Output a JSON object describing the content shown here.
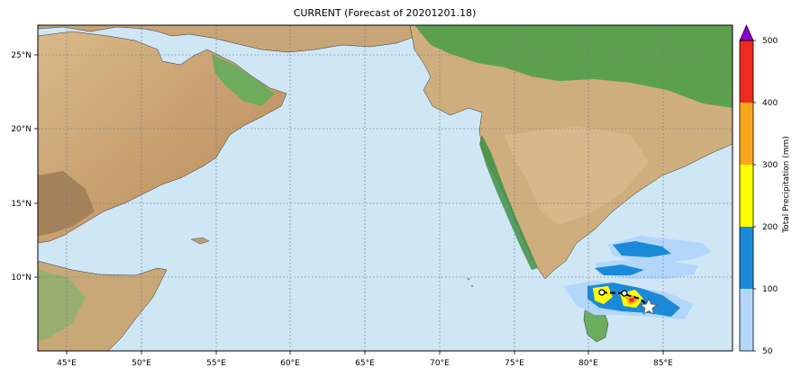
{
  "title": "CURRENT (Forecast of 20201201.18)",
  "map": {
    "lat_ticks": [
      "25°N",
      "20°N",
      "15°N",
      "10°N"
    ],
    "lon_ticks": [
      "45°E",
      "50°E",
      "55°E",
      "60°E",
      "65°E",
      "70°E",
      "75°E",
      "80°E",
      "85°E"
    ],
    "ocean_color": "#cfe6f5",
    "grid": true,
    "grid_style": "dashed",
    "marker_icon": "white-star-icon",
    "storm_track": true
  },
  "colorbar": {
    "label": "Total Precipitation (mm)",
    "ticks": [
      "50",
      "100",
      "200",
      "300",
      "400",
      "500"
    ],
    "bins": [
      {
        "range": "50-100",
        "color": "#b3d7fb"
      },
      {
        "range": "100-200",
        "color": "#1a8ad8"
      },
      {
        "range": "200-300",
        "color": "#ffff00"
      },
      {
        "range": "300-400",
        "color": "#f9a81e"
      },
      {
        "range": "400-500",
        "color": "#ee2a21"
      }
    ],
    "extend_color": "#8a00cc"
  }
}
